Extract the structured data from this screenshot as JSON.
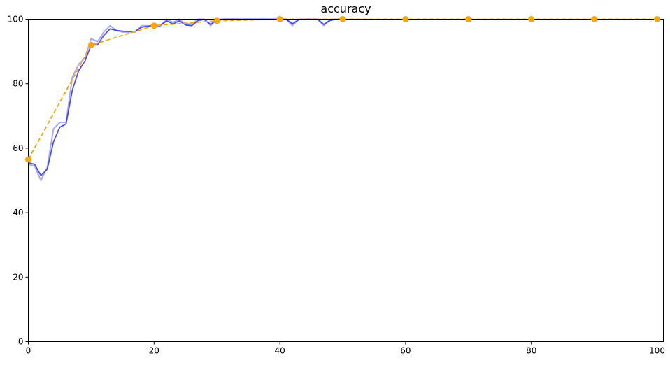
{
  "chart_data": {
    "type": "line",
    "title": "accuracy",
    "xlabel": "",
    "ylabel": "",
    "xlim": [
      0,
      101
    ],
    "ylim": [
      0,
      100
    ],
    "x_ticks": [
      0,
      20,
      40,
      60,
      80,
      100
    ],
    "y_ticks": [
      0,
      20,
      40,
      60,
      80,
      100
    ],
    "grid": false,
    "legend": "none",
    "colors": {
      "raw_line": "#9b9bf0",
      "smooth_line": "#3333ee",
      "eval_line": "#ffa500"
    },
    "series": [
      {
        "style": "raw",
        "x": [
          0,
          1,
          2,
          3,
          4,
          5,
          6,
          7,
          8,
          9,
          10,
          11,
          12,
          13,
          14,
          15,
          16,
          17,
          18,
          19,
          20,
          21,
          22,
          23,
          24,
          25,
          26,
          27,
          28,
          29,
          30,
          31,
          32,
          33,
          34,
          35,
          36,
          37,
          38,
          39,
          40,
          41,
          42,
          43,
          44,
          45,
          46,
          47,
          48,
          49,
          50
        ],
        "y": [
          55,
          54.5,
          50,
          54,
          66,
          68,
          68,
          82,
          86,
          88,
          94,
          93,
          96,
          98,
          96.5,
          96,
          96,
          96,
          98,
          98,
          98,
          98,
          100,
          99,
          100,
          98.5,
          98.5,
          100,
          100,
          98,
          100,
          100,
          100,
          100,
          100,
          100,
          100,
          100,
          100,
          100,
          100,
          100,
          98,
          100,
          100,
          100,
          100,
          98,
          100,
          100,
          100
        ]
      },
      {
        "style": "smoothed",
        "x": [
          0,
          1,
          2,
          3,
          4,
          5,
          6,
          7,
          8,
          9,
          10,
          11,
          12,
          13,
          14,
          15,
          16,
          17,
          18,
          19,
          20,
          21,
          22,
          23,
          24,
          25,
          26,
          27,
          28,
          29,
          30,
          31,
          32,
          33,
          34,
          35,
          36,
          37,
          38,
          39,
          40,
          41,
          42,
          43,
          44,
          45,
          46,
          47,
          48,
          49,
          50
        ],
        "y": [
          55.5,
          55,
          51.5,
          53.5,
          62,
          66.5,
          67.5,
          78,
          84,
          87,
          92,
          92,
          95,
          97,
          96.5,
          96.3,
          96.2,
          96.2,
          97.5,
          97.8,
          98,
          98,
          99.5,
          98.5,
          99.5,
          98.2,
          98,
          99.6,
          99.9,
          98.4,
          99.8,
          100,
          100,
          100,
          100,
          100,
          100,
          100,
          100,
          100,
          100,
          100,
          98.6,
          99.8,
          100,
          100,
          100,
          98.4,
          99.6,
          100,
          100
        ]
      },
      {
        "style": "eval",
        "x": [
          0,
          10,
          20,
          30,
          40,
          50,
          60,
          70,
          80,
          90,
          100
        ],
        "y": [
          56.5,
          92,
          98,
          99.5,
          100,
          100,
          100,
          100,
          100,
          100,
          100
        ]
      }
    ]
  }
}
